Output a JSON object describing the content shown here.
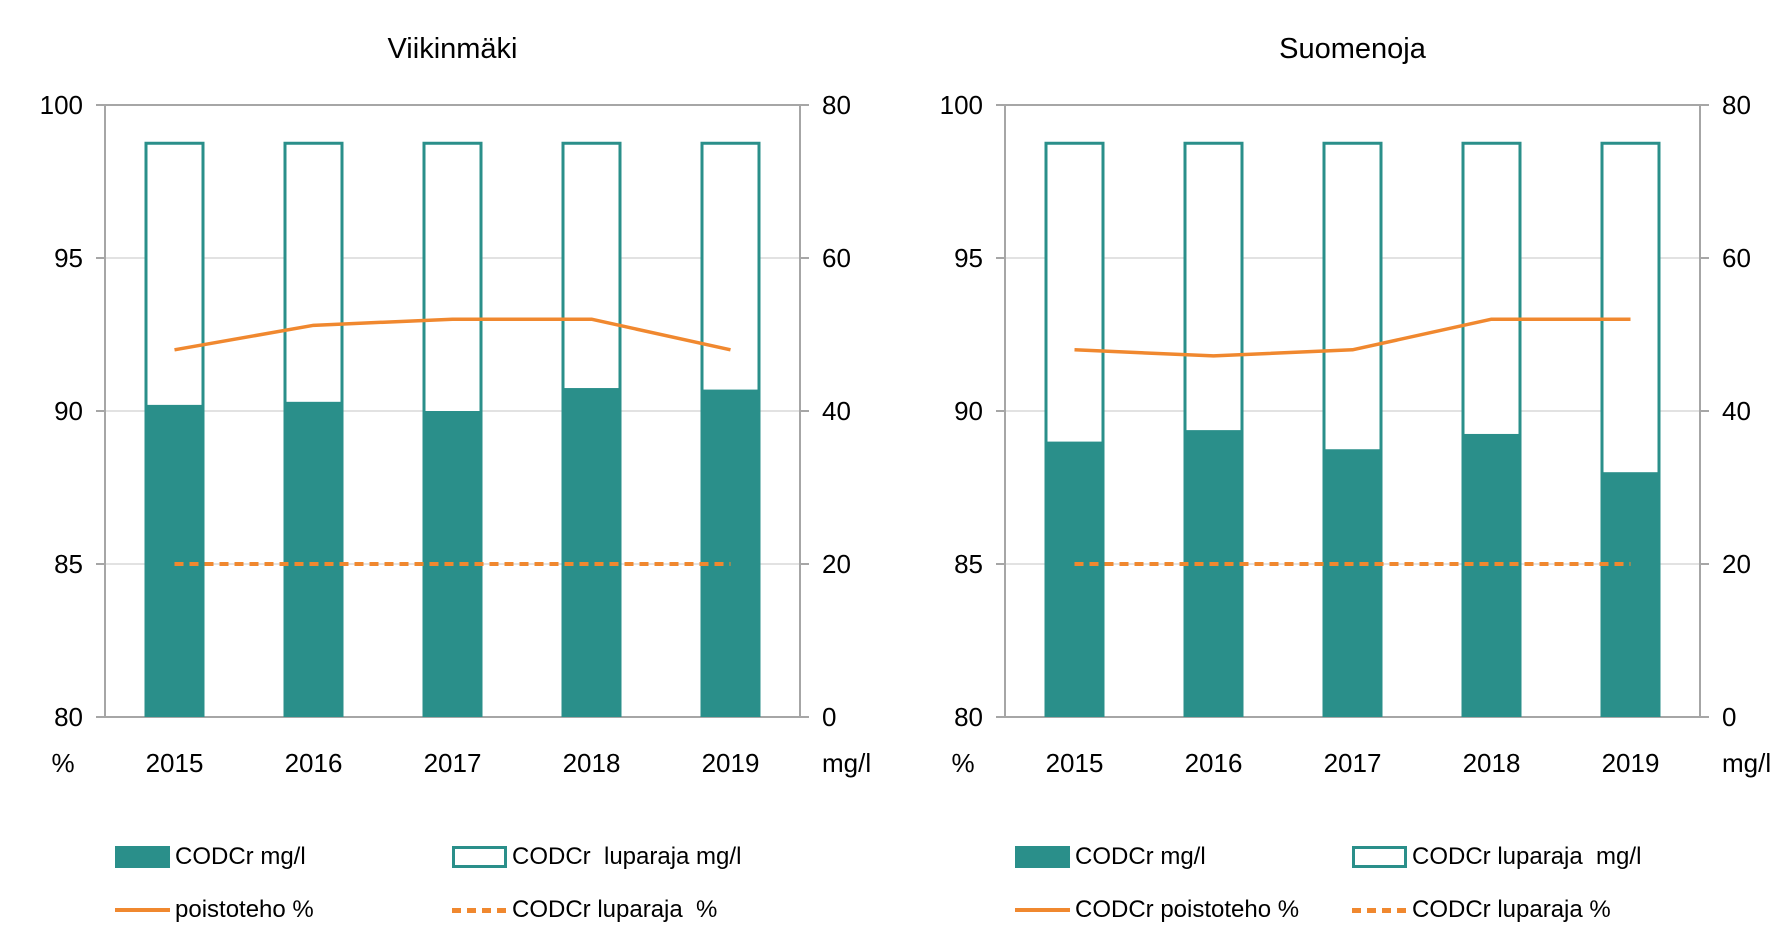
{
  "colors": {
    "teal": "#2A8F8A",
    "orange": "#F0882F",
    "gridline": "#D9D9D9",
    "axis_line": "#A6A6A6",
    "text": "#000000",
    "background": "#FFFFFF"
  },
  "chart_data": [
    {
      "type": "combo-bar-line",
      "title": "Viikinmäki",
      "categories": [
        "2015",
        "2016",
        "2017",
        "2018",
        "2019"
      ],
      "left_axis": {
        "label": "%",
        "min": 80,
        "max": 100,
        "ticks": [
          100,
          95,
          90,
          85,
          80
        ]
      },
      "right_axis": {
        "label": "mg/l",
        "min": 0,
        "max": 80,
        "ticks": [
          80,
          60,
          40,
          20,
          0
        ]
      },
      "grid": true,
      "legend_position": "bottom",
      "series": [
        {
          "name": "CODCr mg/l",
          "kind": "bar",
          "style": "filled",
          "axis": "right",
          "values": [
            40.8,
            41.2,
            40.0,
            43.0,
            42.8
          ]
        },
        {
          "name": "CODCr  luparaja mg/l",
          "kind": "bar",
          "style": "outline",
          "axis": "right",
          "values": [
            75,
            75,
            75,
            75,
            75
          ]
        },
        {
          "name": "poistoteho %",
          "kind": "line",
          "style": "solid",
          "axis": "left",
          "values": [
            92.0,
            92.8,
            93.0,
            93.0,
            92.0
          ]
        },
        {
          "name": "CODCr luparaja  %",
          "kind": "line",
          "style": "dashed",
          "axis": "left",
          "values": [
            85,
            85,
            85,
            85,
            85
          ]
        }
      ],
      "legend": [
        {
          "swatch": "bar-filled",
          "label": "CODCr mg/l"
        },
        {
          "swatch": "bar-outline",
          "label": "CODCr  luparaja mg/l"
        },
        {
          "swatch": "line-solid",
          "label": "poistoteho %"
        },
        {
          "swatch": "line-dashed",
          "label": "CODCr luparaja  %"
        }
      ]
    },
    {
      "type": "combo-bar-line",
      "title": "Suomenoja",
      "categories": [
        "2015",
        "2016",
        "2017",
        "2018",
        "2019"
      ],
      "left_axis": {
        "label": "%",
        "min": 80,
        "max": 100,
        "ticks": [
          100,
          95,
          90,
          85,
          80
        ]
      },
      "right_axis": {
        "label": "mg/l",
        "min": 0,
        "max": 80,
        "ticks": [
          80,
          60,
          40,
          20,
          0
        ]
      },
      "grid": true,
      "legend_position": "bottom",
      "series": [
        {
          "name": "CODCr mg/l",
          "kind": "bar",
          "style": "filled",
          "axis": "right",
          "values": [
            36.0,
            37.5,
            35.0,
            37.0,
            32.0
          ]
        },
        {
          "name": "CODCr luparaja  mg/l",
          "kind": "bar",
          "style": "outline",
          "axis": "right",
          "values": [
            75,
            75,
            75,
            75,
            75
          ]
        },
        {
          "name": "CODCr poistoteho %",
          "kind": "line",
          "style": "solid",
          "axis": "left",
          "values": [
            92.0,
            91.8,
            92.0,
            93.0,
            93.0
          ]
        },
        {
          "name": "CODCr luparaja %",
          "kind": "line",
          "style": "dashed",
          "axis": "left",
          "values": [
            85,
            85,
            85,
            85,
            85
          ]
        }
      ],
      "legend": [
        {
          "swatch": "bar-filled",
          "label": "CODCr mg/l"
        },
        {
          "swatch": "bar-outline",
          "label": "CODCr luparaja  mg/l"
        },
        {
          "swatch": "line-solid",
          "label": "CODCr poistoteho %"
        },
        {
          "swatch": "line-dashed",
          "label": "CODCr luparaja %"
        }
      ]
    }
  ]
}
